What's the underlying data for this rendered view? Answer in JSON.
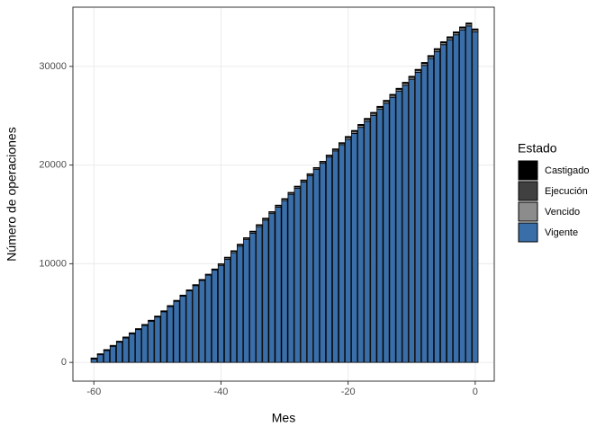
{
  "chart_data": {
    "type": "stacked_bar",
    "x_label": "Mes",
    "y_label": "Número de operaciones",
    "legend_title": "Estado",
    "x": [
      -60,
      -59,
      -58,
      -57,
      -56,
      -55,
      -54,
      -53,
      -52,
      -51,
      -50,
      -49,
      -48,
      -47,
      -46,
      -45,
      -44,
      -43,
      -42,
      -41,
      -40,
      -39,
      -38,
      -37,
      -36,
      -35,
      -34,
      -33,
      -32,
      -31,
      -30,
      -29,
      -28,
      -27,
      -26,
      -25,
      -24,
      -23,
      -22,
      -21,
      -20,
      -19,
      -18,
      -17,
      -16,
      -15,
      -14,
      -13,
      -12,
      -11,
      -10,
      -9,
      -8,
      -7,
      -6,
      -5,
      -4,
      -3,
      -2,
      -1,
      0
    ],
    "series": [
      {
        "name": "Castigado",
        "color": "#000000",
        "values": [
          0,
          0,
          0,
          0,
          0,
          0,
          0,
          0,
          0,
          0,
          0,
          0,
          0,
          0,
          0,
          0,
          0,
          0,
          0,
          0,
          20,
          20,
          20,
          20,
          20,
          20,
          20,
          20,
          20,
          20,
          20,
          20,
          20,
          20,
          20,
          20,
          20,
          20,
          20,
          20,
          40,
          40,
          40,
          40,
          40,
          40,
          40,
          40,
          40,
          40,
          40,
          40,
          40,
          40,
          40,
          40,
          40,
          40,
          40,
          40,
          40
        ]
      },
      {
        "name": "Ejecución",
        "color": "#404040",
        "values": [
          30,
          30,
          30,
          30,
          30,
          30,
          30,
          30,
          30,
          30,
          30,
          30,
          30,
          30,
          30,
          30,
          30,
          30,
          30,
          30,
          40,
          40,
          40,
          40,
          40,
          40,
          40,
          40,
          40,
          40,
          40,
          40,
          40,
          40,
          40,
          40,
          40,
          40,
          40,
          40,
          60,
          60,
          60,
          60,
          60,
          60,
          60,
          60,
          60,
          60,
          60,
          60,
          60,
          60,
          60,
          60,
          60,
          60,
          60,
          60,
          60
        ]
      },
      {
        "name": "Vencido",
        "color": "#8c8c8c",
        "values": [
          70,
          70,
          70,
          70,
          70,
          70,
          70,
          70,
          70,
          70,
          70,
          70,
          70,
          70,
          70,
          70,
          70,
          70,
          70,
          70,
          140,
          140,
          140,
          140,
          140,
          140,
          140,
          140,
          140,
          140,
          140,
          140,
          140,
          140,
          140,
          140,
          140,
          140,
          140,
          140,
          200,
          200,
          200,
          200,
          200,
          200,
          200,
          200,
          200,
          200,
          200,
          200,
          200,
          200,
          200,
          200,
          200,
          200,
          200,
          200,
          200
        ]
      },
      {
        "name": "Vigente",
        "color": "#3a6ea8",
        "values": [
          350,
          775,
          1200,
          1625,
          2050,
          2475,
          2900,
          3325,
          3750,
          4175,
          4600,
          5130,
          5660,
          6190,
          6720,
          7250,
          7780,
          8310,
          8840,
          9370,
          9800,
          10460,
          11120,
          11780,
          12440,
          13100,
          13760,
          14420,
          15080,
          15740,
          16400,
          17030,
          17660,
          18290,
          18920,
          19550,
          20180,
          20810,
          21440,
          22070,
          22600,
          23210,
          23820,
          24430,
          25040,
          25650,
          26260,
          26870,
          27480,
          28090,
          28700,
          29400,
          30100,
          30800,
          31500,
          32200,
          32700,
          33200,
          33700,
          34100,
          33500
        ]
      }
    ],
    "xlim": [
      -63.3,
      3
    ],
    "xticks": [
      -60,
      -40,
      -20,
      0
    ],
    "ylim": [
      -1900,
      36000
    ],
    "yticks": [
      0,
      10000,
      20000,
      30000
    ],
    "grid": true
  }
}
